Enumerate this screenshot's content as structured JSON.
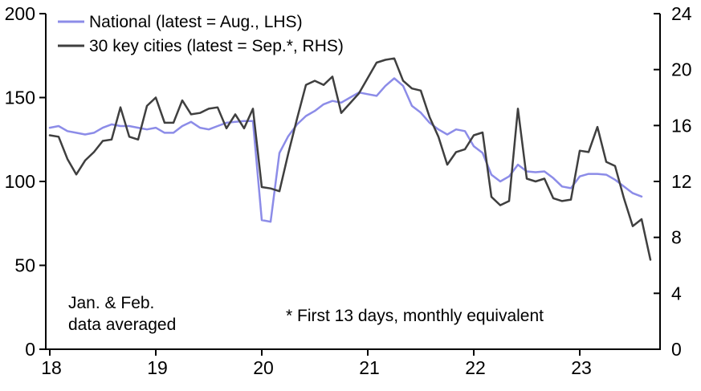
{
  "chart_data": {
    "type": "line",
    "title": "",
    "x_unit": "month",
    "x_start": "2018-01",
    "x_tick_labels": [
      "18",
      "19",
      "20",
      "21",
      "22",
      "23"
    ],
    "lhs_axis": {
      "label": "LHS",
      "min": 0,
      "max": 200,
      "ticks": [
        0,
        50,
        100,
        150,
        200
      ]
    },
    "rhs_axis": {
      "label": "RHS",
      "min": 0,
      "max": 24,
      "ticks": [
        0,
        4,
        8,
        12,
        16,
        20,
        24
      ]
    },
    "grid": "off",
    "legend_position": "top-left",
    "series": [
      {
        "name": "National (latest = Aug., LHS)",
        "axis": "LHS",
        "color": "#8c8ce8",
        "values": [
          132,
          133,
          130,
          129,
          128,
          129,
          132,
          134,
          133,
          133,
          132,
          131,
          132,
          129,
          129,
          133,
          135.5,
          132,
          131,
          133,
          135,
          135.5,
          136,
          136,
          77,
          76,
          117,
          127,
          134,
          139,
          142,
          146,
          148,
          147,
          150,
          153,
          152,
          151,
          157,
          161.5,
          157,
          145,
          141,
          135,
          131,
          128,
          131,
          130,
          121,
          117,
          104,
          100,
          103,
          110,
          106,
          105.5,
          106,
          102,
          97,
          96,
          103,
          104.5,
          104.5,
          104,
          101,
          97,
          93,
          91
        ]
      },
      {
        "name": "30 key cities (latest = Sep.*, RHS)",
        "axis": "RHS",
        "color": "#3f3f3f",
        "values": [
          15.3,
          15.2,
          13.6,
          12.5,
          13.5,
          14.1,
          14.9,
          15.0,
          17.3,
          15.2,
          15.0,
          17.4,
          18.0,
          16.2,
          16.2,
          17.8,
          16.8,
          16.9,
          17.2,
          17.3,
          15.8,
          16.8,
          15.8,
          17.2,
          11.6,
          11.5,
          11.3,
          14.0,
          16.5,
          18.9,
          19.2,
          18.9,
          19.5,
          16.9,
          17.6,
          18.3,
          19.4,
          20.5,
          20.7,
          20.8,
          19.2,
          18.65,
          18.5,
          16.6,
          15.2,
          13.2,
          14.1,
          14.3,
          15.3,
          15.5,
          10.9,
          10.3,
          10.6,
          17.2,
          12.2,
          12.0,
          12.2,
          10.8,
          10.6,
          10.7,
          14.2,
          14.1,
          15.9,
          13.4,
          13.1,
          10.8,
          8.8,
          9.3,
          6.4
        ]
      }
    ],
    "annotations": [
      "Jan. & Feb. data averaged",
      "* First 13 days, monthly equivalent"
    ]
  },
  "legend": {
    "item1": "National (latest = Aug., LHS)",
    "item2": "30 key cities (latest = Sep.*, RHS)"
  },
  "notes": {
    "note1_line1": "Jan. & Feb.",
    "note1_line2": "data averaged",
    "note2": "* First 13 days, monthly equivalent"
  },
  "colors": {
    "national_line": "#8c8ce8",
    "cities_line": "#3f3f3f",
    "axis": "#000000",
    "background": "#ffffff"
  }
}
